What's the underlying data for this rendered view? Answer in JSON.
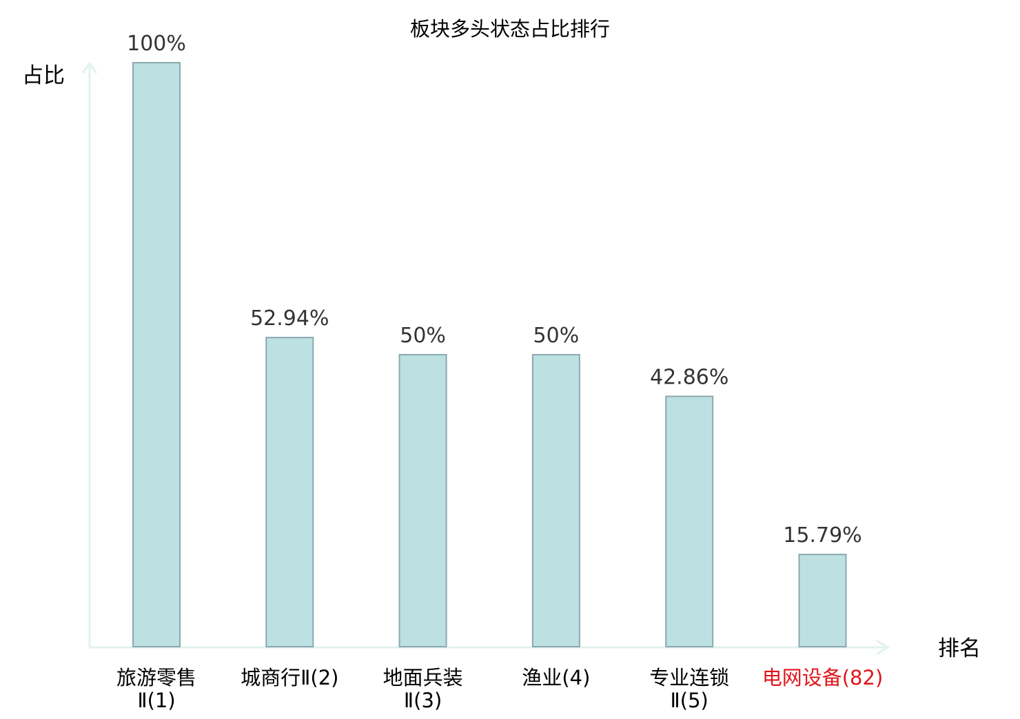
{
  "chart_data": {
    "type": "bar",
    "title": "板块多头状态占比排行",
    "ylabel": "占比",
    "xlabel": "排名",
    "ylim": [
      0,
      100
    ],
    "grid": false,
    "legend": "none",
    "categories": [
      {
        "name_lines": [
          "旅游零售",
          "Ⅱ(1)"
        ],
        "highlight": false
      },
      {
        "name_lines": [
          "城商行Ⅱ(2)"
        ],
        "highlight": false
      },
      {
        "name_lines": [
          "地面兵装",
          "Ⅱ(3)"
        ],
        "highlight": false
      },
      {
        "name_lines": [
          "渔业(4)"
        ],
        "highlight": false
      },
      {
        "name_lines": [
          "专业连锁",
          "Ⅱ(5)"
        ],
        "highlight": false
      },
      {
        "name_lines": [
          "电网设备(82)"
        ],
        "highlight": true
      }
    ],
    "values": [
      100,
      52.94,
      50,
      50,
      42.86,
      15.79
    ],
    "value_labels": [
      "100%",
      "52.94%",
      "50%",
      "50%",
      "42.86%",
      "15.79%"
    ]
  },
  "colors": {
    "bar_fill": "#bde0e3",
    "bar_stroke": "#8aa9ad",
    "axis": "#e1f2ef",
    "text": "#333333",
    "highlight_text": "#e0151b"
  }
}
